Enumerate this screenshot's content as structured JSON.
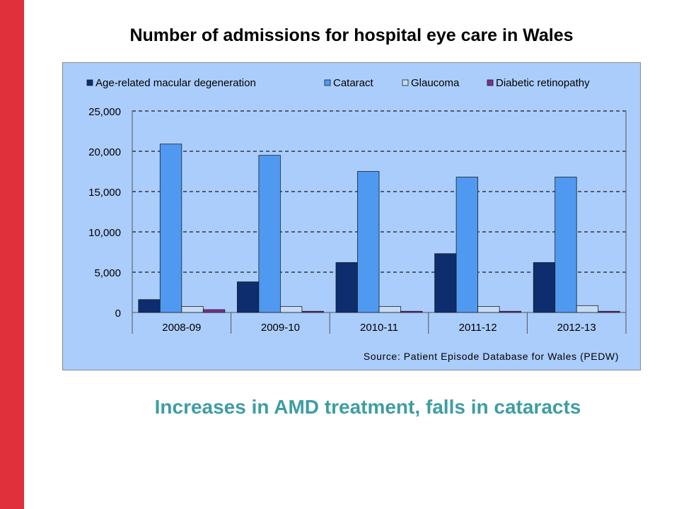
{
  "title": "Number of admissions for hospital eye care in Wales",
  "caption": "Increases in AMD treatment, falls in cataracts",
  "colors": {
    "side_bar": "#e0303c",
    "panel_background": "#abcdfb",
    "caption": "#3f9da3"
  },
  "chart_data": {
    "type": "bar",
    "categories": [
      "2008-09",
      "2009-10",
      "2010-11",
      "2011-12",
      "2012-13"
    ],
    "series": [
      {
        "name": "Age-related macular degeneration",
        "color": "#0d2d6e",
        "values": [
          1600,
          3800,
          6200,
          7300,
          6200
        ]
      },
      {
        "name": "Cataract",
        "color": "#4f9af0",
        "values": [
          20900,
          19500,
          17500,
          16800,
          16800
        ]
      },
      {
        "name": "Glaucoma",
        "color": "#c6dcf5",
        "values": [
          750,
          750,
          750,
          750,
          850
        ]
      },
      {
        "name": "Diabetic retinopathy",
        "color": "#7b3090",
        "values": [
          350,
          150,
          150,
          150,
          150
        ]
      }
    ],
    "ylim": [
      0,
      25000
    ],
    "yticks": [
      "0",
      "5,000",
      "10,000",
      "15,000",
      "20,000",
      "25,000"
    ],
    "ytick_values": [
      0,
      5000,
      10000,
      15000,
      20000,
      25000
    ],
    "grid": true,
    "legend_position": "top",
    "source": "Source: Patient Episode Database for Wales (PEDW)"
  }
}
